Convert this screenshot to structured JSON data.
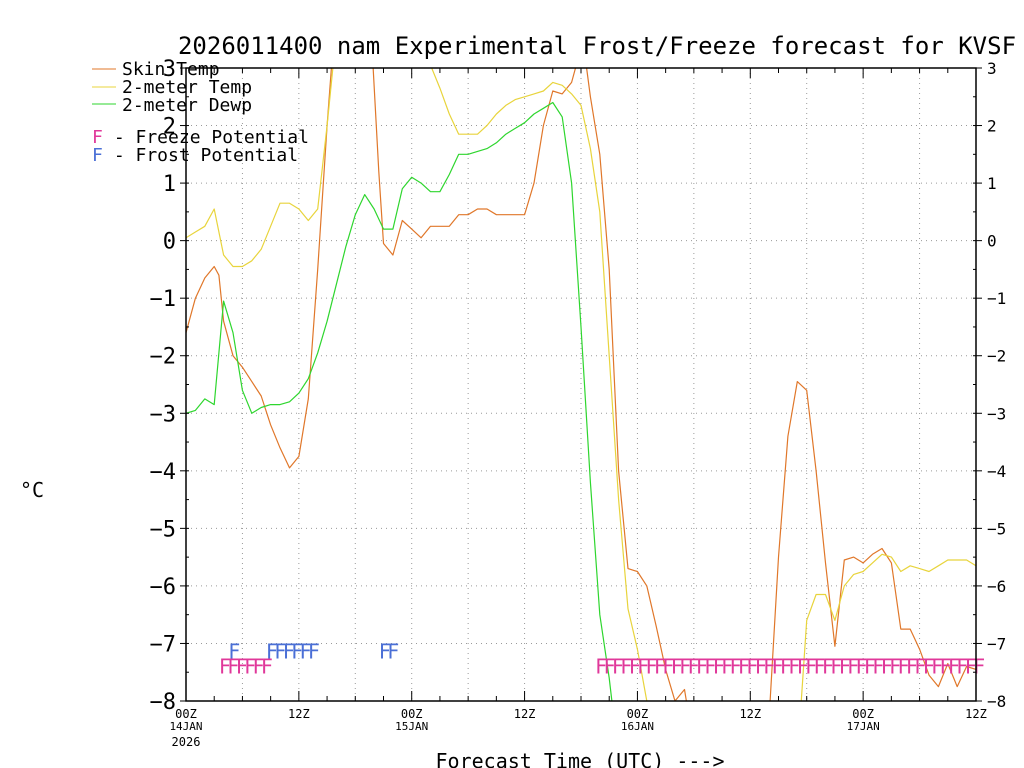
{
  "chart_data": {
    "type": "line",
    "title": "2026011400 nam Experimental Frost/Freeze forecast for KVSF",
    "xlabel": "Forecast Time (UTC) --->",
    "ylabel": "°C",
    "ylim": [
      -8,
      3
    ],
    "xlim_hours": [
      0,
      84
    ],
    "yticks": [
      3,
      2,
      1,
      0,
      -1,
      -2,
      -3,
      -4,
      -5,
      -6,
      -7,
      -8
    ],
    "grid": true,
    "xticks": [
      {
        "h": 0,
        "label": "00Z",
        "sub": "14JAN",
        "sub2": "2026"
      },
      {
        "h": 12,
        "label": "12Z",
        "sub": "",
        "sub2": ""
      },
      {
        "h": 24,
        "label": "00Z",
        "sub": "15JAN",
        "sub2": ""
      },
      {
        "h": 36,
        "label": "12Z",
        "sub": "",
        "sub2": ""
      },
      {
        "h": 48,
        "label": "00Z",
        "sub": "16JAN",
        "sub2": ""
      },
      {
        "h": 60,
        "label": "12Z",
        "sub": "",
        "sub2": ""
      },
      {
        "h": 72,
        "label": "00Z",
        "sub": "17JAN",
        "sub2": ""
      },
      {
        "h": 84,
        "label": "12Z",
        "sub": "",
        "sub2": ""
      }
    ],
    "legend": [
      {
        "name": "Skin Temp",
        "color": "#e0772a"
      },
      {
        "name": "2-meter Temp",
        "color": "#e8d43c"
      },
      {
        "name": "2-meter Dewp",
        "color": "#2ed62e"
      }
    ],
    "potential_legend": [
      {
        "letter": "F",
        "text": " - Freeze Potential",
        "color": "#e0389a"
      },
      {
        "letter": "F",
        "text": " - Frost Potential",
        "color": "#4a6fd6"
      }
    ],
    "series": [
      {
        "name": "Skin Temp",
        "color": "#e0772a",
        "points": [
          [
            0,
            -1.6
          ],
          [
            1,
            -1.0
          ],
          [
            2,
            -0.65
          ],
          [
            3,
            -0.45
          ],
          [
            3.5,
            -0.6
          ],
          [
            4,
            -1.4
          ],
          [
            5,
            -2.0
          ],
          [
            6,
            -2.2
          ],
          [
            7,
            -2.45
          ],
          [
            8,
            -2.7
          ],
          [
            9,
            -3.2
          ],
          [
            10,
            -3.6
          ],
          [
            11,
            -3.95
          ],
          [
            12,
            -3.75
          ],
          [
            13,
            -2.75
          ],
          [
            14,
            -0.5
          ],
          [
            15,
            2.0
          ],
          [
            15.6,
            3.3
          ],
          [
            19.8,
            3.3
          ],
          [
            20.5,
            1.2
          ],
          [
            21,
            -0.05
          ],
          [
            22,
            -0.25
          ],
          [
            23,
            0.35
          ],
          [
            24,
            0.2
          ],
          [
            25,
            0.05
          ],
          [
            26,
            0.25
          ],
          [
            28,
            0.25
          ],
          [
            29,
            0.45
          ],
          [
            30,
            0.45
          ],
          [
            31,
            0.55
          ],
          [
            32,
            0.55
          ],
          [
            33,
            0.45
          ],
          [
            36,
            0.45
          ],
          [
            37,
            1.0
          ],
          [
            38,
            2.0
          ],
          [
            39,
            2.6
          ],
          [
            40,
            2.55
          ],
          [
            41,
            2.75
          ],
          [
            41.5,
            3.05
          ],
          [
            42.2,
            3.3
          ],
          [
            42.6,
            3.0
          ],
          [
            43,
            2.5
          ],
          [
            44,
            1.5
          ],
          [
            45,
            -0.5
          ],
          [
            46,
            -4.0
          ],
          [
            47,
            -5.7
          ],
          [
            48,
            -5.75
          ],
          [
            49,
            -6.0
          ],
          [
            50,
            -6.7
          ],
          [
            51,
            -7.45
          ],
          [
            52,
            -8.0
          ],
          [
            53,
            -7.8
          ],
          [
            53.5,
            -8.3
          ],
          [
            62,
            -8.3
          ],
          [
            63,
            -5.5
          ],
          [
            64,
            -3.4
          ],
          [
            65,
            -2.45
          ],
          [
            66,
            -2.6
          ],
          [
            67,
            -4.0
          ],
          [
            68,
            -5.6
          ],
          [
            69,
            -7.05
          ],
          [
            70,
            -5.55
          ],
          [
            71,
            -5.5
          ],
          [
            72,
            -5.6
          ],
          [
            73,
            -5.45
          ],
          [
            74,
            -5.35
          ],
          [
            75,
            -5.6
          ],
          [
            76,
            -6.75
          ],
          [
            77,
            -6.75
          ],
          [
            78,
            -7.1
          ],
          [
            79,
            -7.55
          ],
          [
            80,
            -7.75
          ],
          [
            81,
            -7.35
          ],
          [
            82,
            -7.75
          ],
          [
            83,
            -7.4
          ],
          [
            84,
            -7.45
          ]
        ]
      },
      {
        "name": "2-meter Temp",
        "color": "#e8d43c",
        "points": [
          [
            0,
            0.05
          ],
          [
            1,
            0.15
          ],
          [
            2,
            0.25
          ],
          [
            3,
            0.55
          ],
          [
            4,
            -0.25
          ],
          [
            5,
            -0.45
          ],
          [
            6,
            -0.45
          ],
          [
            7,
            -0.35
          ],
          [
            8,
            -0.15
          ],
          [
            9,
            0.25
          ],
          [
            10,
            0.65
          ],
          [
            11,
            0.65
          ],
          [
            12,
            0.55
          ],
          [
            13,
            0.35
          ],
          [
            14,
            0.55
          ],
          [
            15,
            2.0
          ],
          [
            15.8,
            3.3
          ],
          [
            24.5,
            3.3
          ],
          [
            25,
            3.2
          ],
          [
            26,
            3.05
          ],
          [
            27,
            2.65
          ],
          [
            28,
            2.2
          ],
          [
            29,
            1.85
          ],
          [
            30,
            1.85
          ],
          [
            31,
            1.85
          ],
          [
            32,
            2.0
          ],
          [
            33,
            2.2
          ],
          [
            34,
            2.35
          ],
          [
            35,
            2.45
          ],
          [
            36,
            2.5
          ],
          [
            37,
            2.55
          ],
          [
            38,
            2.6
          ],
          [
            39,
            2.75
          ],
          [
            40,
            2.7
          ],
          [
            41,
            2.55
          ],
          [
            42,
            2.35
          ],
          [
            43,
            1.6
          ],
          [
            44,
            0.5
          ],
          [
            45,
            -2.0
          ],
          [
            46,
            -4.5
          ],
          [
            47,
            -6.4
          ],
          [
            48,
            -7.1
          ],
          [
            49,
            -8.0
          ],
          [
            49.5,
            -8.3
          ],
          [
            65.3,
            -8.3
          ],
          [
            66,
            -6.6
          ],
          [
            67,
            -6.15
          ],
          [
            68,
            -6.15
          ],
          [
            69,
            -6.6
          ],
          [
            70,
            -6.0
          ],
          [
            71,
            -5.8
          ],
          [
            72,
            -5.75
          ],
          [
            73,
            -5.6
          ],
          [
            74,
            -5.45
          ],
          [
            75,
            -5.5
          ],
          [
            76,
            -5.75
          ],
          [
            77,
            -5.65
          ],
          [
            78,
            -5.7
          ],
          [
            79,
            -5.75
          ],
          [
            80,
            -5.65
          ],
          [
            81,
            -5.55
          ],
          [
            82,
            -5.55
          ],
          [
            83,
            -5.55
          ],
          [
            84,
            -5.65
          ]
        ]
      },
      {
        "name": "2-meter Dewp",
        "color": "#2ed62e",
        "points": [
          [
            0,
            -3.0
          ],
          [
            1,
            -2.95
          ],
          [
            2,
            -2.75
          ],
          [
            3,
            -2.85
          ],
          [
            4,
            -1.05
          ],
          [
            5,
            -1.6
          ],
          [
            6,
            -2.6
          ],
          [
            7,
            -3.0
          ],
          [
            8,
            -2.9
          ],
          [
            9,
            -2.85
          ],
          [
            10,
            -2.85
          ],
          [
            11,
            -2.8
          ],
          [
            12,
            -2.65
          ],
          [
            13,
            -2.4
          ],
          [
            14,
            -1.95
          ],
          [
            15,
            -1.4
          ],
          [
            16,
            -0.75
          ],
          [
            17,
            -0.1
          ],
          [
            18,
            0.45
          ],
          [
            19,
            0.8
          ],
          [
            20,
            0.55
          ],
          [
            21,
            0.2
          ],
          [
            22,
            0.2
          ],
          [
            23,
            0.9
          ],
          [
            24,
            1.1
          ],
          [
            25,
            1.0
          ],
          [
            26,
            0.85
          ],
          [
            27,
            0.85
          ],
          [
            28,
            1.15
          ],
          [
            29,
            1.5
          ],
          [
            30,
            1.5
          ],
          [
            31,
            1.55
          ],
          [
            32,
            1.6
          ],
          [
            33,
            1.7
          ],
          [
            34,
            1.85
          ],
          [
            35,
            1.95
          ],
          [
            36,
            2.05
          ],
          [
            37,
            2.2
          ],
          [
            38,
            2.3
          ],
          [
            39,
            2.4
          ],
          [
            40,
            2.15
          ],
          [
            41,
            1.0
          ],
          [
            42,
            -1.5
          ],
          [
            43,
            -4.2
          ],
          [
            44,
            -6.5
          ],
          [
            45,
            -7.6
          ],
          [
            45.5,
            -8.3
          ]
        ]
      }
    ],
    "freeze_markers": {
      "letter": "F",
      "color": "#e0389a",
      "value": -7.38,
      "ranges": [
        [
          3.5,
          8.3
        ],
        [
          43.5,
          84
        ]
      ]
    },
    "frost_markers": {
      "letter": "F",
      "color": "#4a6fd6",
      "value": -7.12,
      "ranges": [
        [
          4.5,
          5.3
        ],
        [
          8.5,
          13.2
        ],
        [
          20.5,
          22.2
        ]
      ]
    }
  }
}
